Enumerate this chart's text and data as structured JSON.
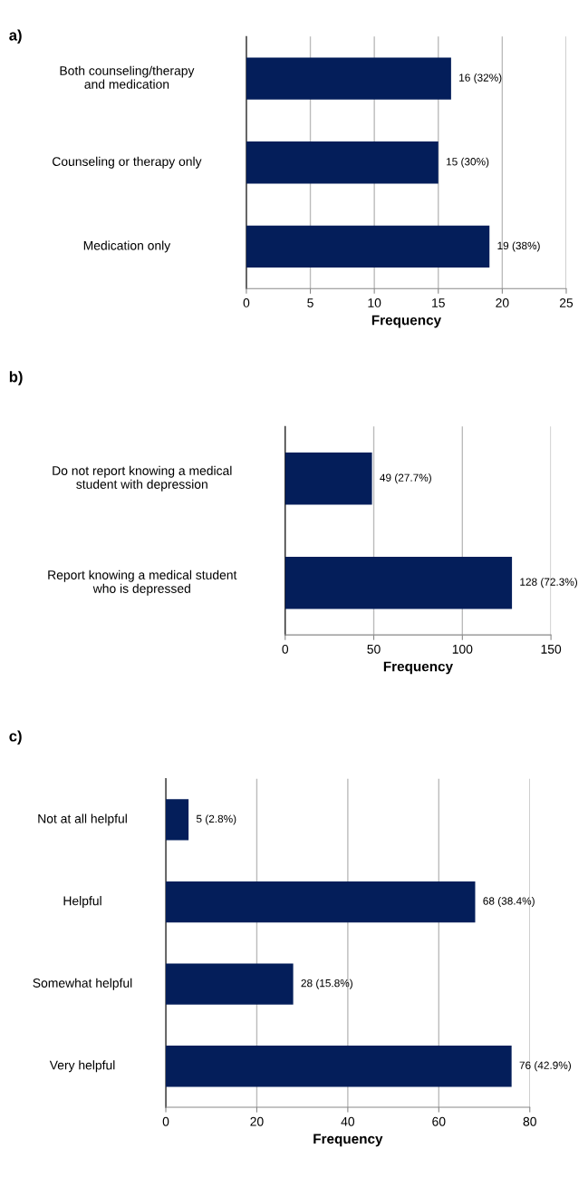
{
  "chart_data": [
    {
      "type": "bar",
      "orientation": "horizontal",
      "title": "a)",
      "xlabel": "Frequency",
      "categories": [
        "Both counseling/therapy\nand medication",
        "Counseling or therapy only",
        "Medication only"
      ],
      "values": [
        16,
        15,
        19
      ],
      "value_labels": [
        "16 (32%)",
        "15 (30%)",
        "19 (38%)"
      ],
      "color": "#041e5a",
      "xlim": [
        0,
        25
      ],
      "xticks": [
        0,
        5,
        10,
        15,
        20,
        25
      ],
      "grid": "x",
      "legend": false
    },
    {
      "type": "bar",
      "orientation": "horizontal",
      "title": "b)",
      "xlabel": "Frequency",
      "categories": [
        "Do not report knowing a medical\nstudent with depression",
        "Report knowing a medical student\nwho is depressed"
      ],
      "values": [
        49,
        128
      ],
      "value_labels": [
        "49 (27.7%)",
        "128 (72.3%)"
      ],
      "color": "#041e5a",
      "xlim": [
        0,
        150
      ],
      "xticks": [
        0,
        50,
        100,
        150
      ],
      "grid": "x",
      "legend": false
    },
    {
      "type": "bar",
      "orientation": "horizontal",
      "title": "c)",
      "xlabel": "Frequency",
      "categories": [
        "Not at all helpful",
        "Helpful",
        "Somewhat helpful",
        "Very helpful"
      ],
      "values": [
        5,
        68,
        28,
        76
      ],
      "value_labels": [
        "5 (2.8%)",
        "68 (38.4%)",
        "28 (15.8%)",
        "76 (42.9%)"
      ],
      "color": "#041e5a",
      "xlim": [
        0,
        80
      ],
      "xticks": [
        0,
        20,
        40,
        60,
        80
      ],
      "grid": "x",
      "legend": false
    }
  ]
}
